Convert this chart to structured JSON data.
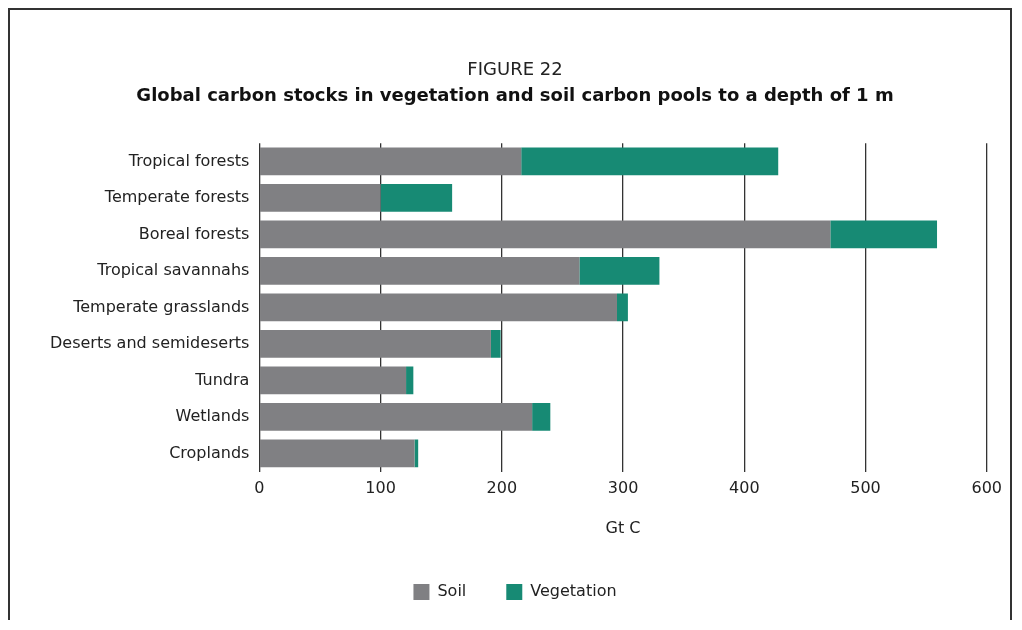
{
  "chart_data": {
    "type": "bar",
    "orientation": "horizontal",
    "stacked": true,
    "title": "FIGURE 22",
    "subtitle": "Global carbon stocks in vegetation and soil carbon pools to a depth of 1 m",
    "xlabel": "Gt C",
    "categories": [
      "Tropical forests",
      "Temperate forests",
      "Boreal forests",
      "Tropical savannahs",
      "Temperate grasslands",
      "Deserts and semideserts",
      "Tundra",
      "Wetlands",
      "Croplands"
    ],
    "series": [
      {
        "name": "Soil",
        "color": "#808083",
        "values": [
          216,
          100,
          471,
          264,
          295,
          191,
          121,
          225,
          128
        ]
      },
      {
        "name": "Vegetation",
        "color": "#178a74",
        "values": [
          212,
          59,
          88,
          66,
          9,
          8,
          6,
          15,
          3
        ]
      }
    ],
    "xlim": [
      0,
      600
    ],
    "xticks": [
      0,
      100,
      200,
      300,
      400,
      500,
      600
    ],
    "grid": "x",
    "legend": "bottom"
  }
}
